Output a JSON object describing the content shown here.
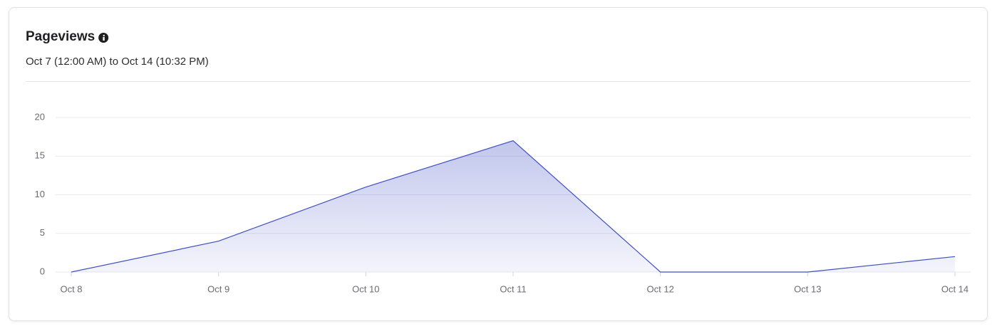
{
  "chart_data": {
    "type": "area",
    "title": "Pageviews",
    "subtitle": "Oct 7 (12:00 AM) to Oct 14 (10:32 PM)",
    "categories": [
      "Oct 8",
      "Oct 9",
      "Oct 10",
      "Oct 11",
      "Oct 12",
      "Oct 13",
      "Oct 14"
    ],
    "values": [
      0,
      4,
      11,
      17,
      0,
      0,
      2
    ],
    "color": "#3f4fc4",
    "ylim": [
      0,
      20
    ],
    "yticks": [
      0,
      5,
      10,
      15,
      20
    ],
    "grid": true
  }
}
